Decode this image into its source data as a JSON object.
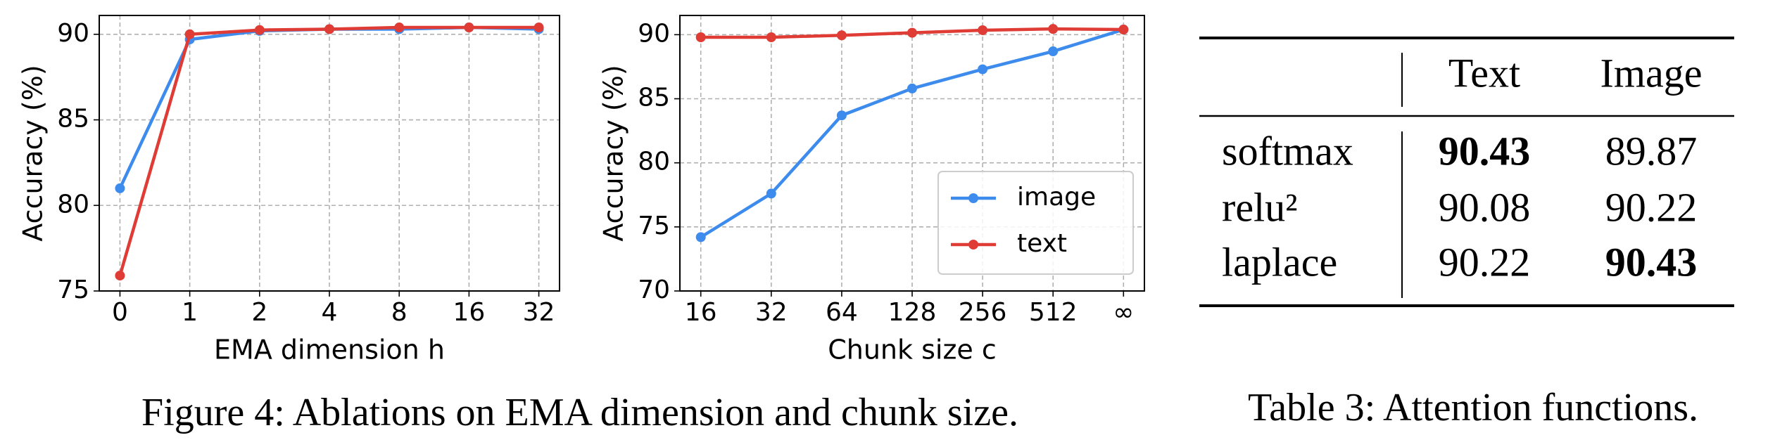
{
  "chart_data": [
    {
      "type": "line",
      "ylabel": "Accuracy (%)",
      "xlabel": "EMA dimension h",
      "categories": [
        "0",
        "1",
        "2",
        "4",
        "8",
        "16",
        "32"
      ],
      "series": [
        {
          "color": "#3d8ced",
          "values": [
            81.0,
            89.7,
            90.2,
            90.3,
            90.3,
            90.4,
            90.3
          ]
        },
        {
          "color": "#e03c36",
          "values": [
            75.9,
            90.0,
            90.25,
            90.3,
            90.4,
            90.4,
            90.4
          ]
        }
      ],
      "ylim": [
        75,
        91.1
      ],
      "yticks": [
        75,
        80,
        85,
        90
      ],
      "grid": true
    },
    {
      "type": "line",
      "ylabel": "Accuracy (%)",
      "xlabel": "Chunk size c",
      "categories": [
        "16",
        "32",
        "64",
        "128",
        "256",
        "512",
        "∞"
      ],
      "series": [
        {
          "name": "image",
          "color": "#3d8ced",
          "values": [
            74.2,
            77.6,
            83.7,
            85.8,
            87.3,
            88.7,
            90.4
          ]
        },
        {
          "name": "text",
          "color": "#e03c36",
          "values": [
            89.8,
            89.8,
            89.95,
            90.15,
            90.35,
            90.45,
            90.4
          ]
        }
      ],
      "ylim": [
        70,
        91.5
      ],
      "yticks": [
        70,
        75,
        80,
        85,
        90
      ],
      "grid": true,
      "legend": "lower right"
    }
  ],
  "figure_caption": "Figure 4: Ablations on EMA dimension and chunk size.",
  "table": {
    "columns": [
      "Text",
      "Image"
    ],
    "rows": [
      {
        "name": "softmax",
        "values": [
          90.43,
          89.87
        ],
        "bold": [
          true,
          false
        ]
      },
      {
        "name": "relu²",
        "values": [
          90.08,
          90.22
        ],
        "bold": [
          false,
          false
        ]
      },
      {
        "name": "laplace",
        "values": [
          90.22,
          90.43
        ],
        "bold": [
          false,
          true
        ]
      }
    ],
    "caption": "Table 3: Attention functions."
  }
}
